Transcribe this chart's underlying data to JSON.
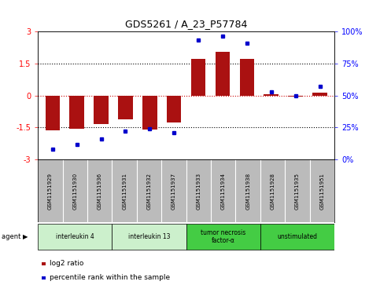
{
  "title": "GDS5261 / A_23_P57784",
  "samples": [
    "GSM1151929",
    "GSM1151930",
    "GSM1151936",
    "GSM1151931",
    "GSM1151932",
    "GSM1151937",
    "GSM1151933",
    "GSM1151934",
    "GSM1151938",
    "GSM1151928",
    "GSM1151935",
    "GSM1151951"
  ],
  "log2_ratio": [
    -1.62,
    -1.57,
    -1.35,
    -1.1,
    -1.6,
    -1.25,
    1.72,
    2.05,
    1.73,
    0.07,
    -0.05,
    0.12
  ],
  "percentile": [
    8,
    12,
    16,
    22,
    24,
    21,
    93,
    96,
    91,
    53,
    50,
    57
  ],
  "agents": [
    {
      "label": "interleukin 4",
      "start": 0,
      "end": 2,
      "color": "#ccf0cc"
    },
    {
      "label": "interleukin 13",
      "start": 3,
      "end": 5,
      "color": "#ccf0cc"
    },
    {
      "label": "tumor necrosis\nfactor-α",
      "start": 6,
      "end": 8,
      "color": "#44cc44"
    },
    {
      "label": "unstimulated",
      "start": 9,
      "end": 11,
      "color": "#44cc44"
    }
  ],
  "bar_color": "#aa1111",
  "dot_color": "#0000cc",
  "ylim": [
    -3,
    3
  ],
  "y2lim": [
    0,
    100
  ],
  "yticks": [
    -3,
    -1.5,
    0,
    1.5,
    3
  ],
  "y2ticks": [
    0,
    25,
    50,
    75,
    100
  ],
  "ytick_labels": [
    "-3",
    "-1.5",
    "0",
    "1.5",
    "3"
  ],
  "y2tick_labels": [
    "0%",
    "25%",
    "50%",
    "75%",
    "100%"
  ],
  "hlines_dotted": [
    -1.5,
    1.5
  ],
  "hline_zero_color": "#cc0000",
  "background_color": "#ffffff",
  "plot_bg": "#ffffff",
  "sample_bg": "#bbbbbb",
  "agent_light_color": "#ccf0cc",
  "agent_dark_color": "#44cc44",
  "legend_items": [
    {
      "label": "log2 ratio",
      "color": "#aa1111"
    },
    {
      "label": "percentile rank within the sample",
      "color": "#0000cc"
    }
  ]
}
